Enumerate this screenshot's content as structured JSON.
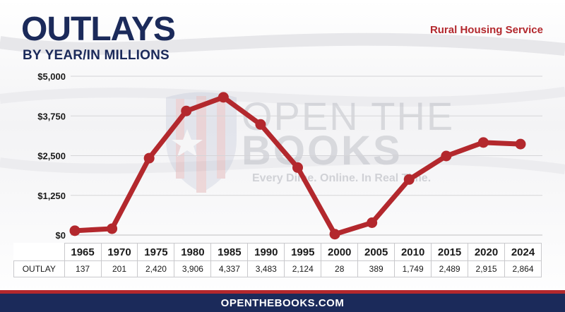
{
  "title": "OUTLAYS",
  "subtitle": "BY YEAR/IN MILLIONS",
  "program": "Rural Housing Service",
  "watermark": {
    "line1": "OPEN THE",
    "line2": "BOOKS",
    "tagline": "Every Dime. Online. In Real Time."
  },
  "table": {
    "row_label": "OUTLAY",
    "years": [
      "1965",
      "1970",
      "1975",
      "1980",
      "1985",
      "1990",
      "1995",
      "2000",
      "2005",
      "2010",
      "2015",
      "2020",
      "2024"
    ],
    "values": [
      "137",
      "201",
      "2,420",
      "3,906",
      "4,337",
      "3,483",
      "2,124",
      "28",
      "389",
      "1,749",
      "2,489",
      "2,915",
      "2,864"
    ]
  },
  "footer": "OPENTHEBOOKS.COM",
  "colors": {
    "line": "#b3282d",
    "navy": "#1b2a5a",
    "grid": "#d5d5d8"
  },
  "chart_data": {
    "type": "line",
    "x": [
      1965,
      1970,
      1975,
      1980,
      1985,
      1990,
      1995,
      2000,
      2005,
      2010,
      2015,
      2020,
      2024
    ],
    "values": [
      137,
      201,
      2420,
      3906,
      4337,
      3483,
      2124,
      28,
      389,
      1749,
      2489,
      2915,
      2864
    ],
    "ylim": [
      0,
      5000
    ],
    "yticks": [
      0,
      1250,
      2500,
      3750,
      5000
    ],
    "ytick_labels": [
      "$0",
      "$1,250",
      "$2,500",
      "$3,750",
      "$5,000"
    ],
    "grid": true
  }
}
